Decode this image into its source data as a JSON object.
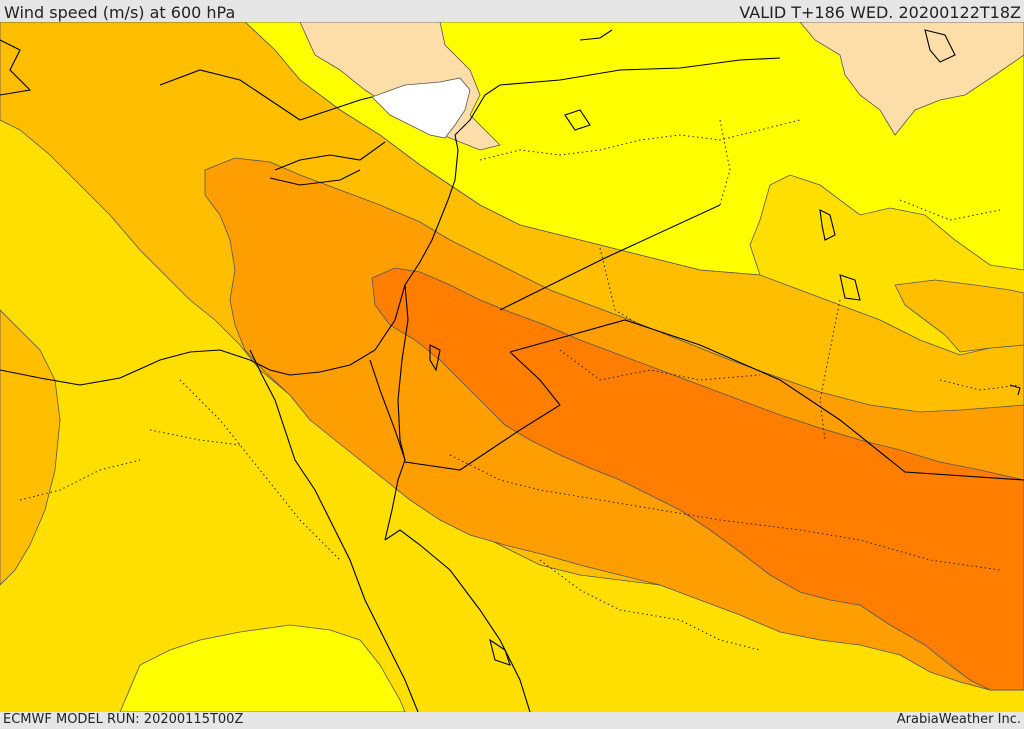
{
  "header": {
    "title": "Wind speed (m/s) at 600 hPa",
    "valid": "VALID T+186 WED. 20200122T18Z"
  },
  "footer": {
    "model_run": "ECMWF MODEL RUN: 20200115T00Z",
    "credit": "ArabiaWeather Inc."
  },
  "colors": {
    "band_lt10": "#ffffff",
    "band_10_15": "#fedea8",
    "band_15_20": "#ffff00",
    "band_20_25": "#ffdf00",
    "band_25_30": "#ffbe00",
    "band_30_35": "#ff9e00",
    "band_35_40": "#ff7e00",
    "contour": "#555555",
    "coastline": "#000000"
  }
}
